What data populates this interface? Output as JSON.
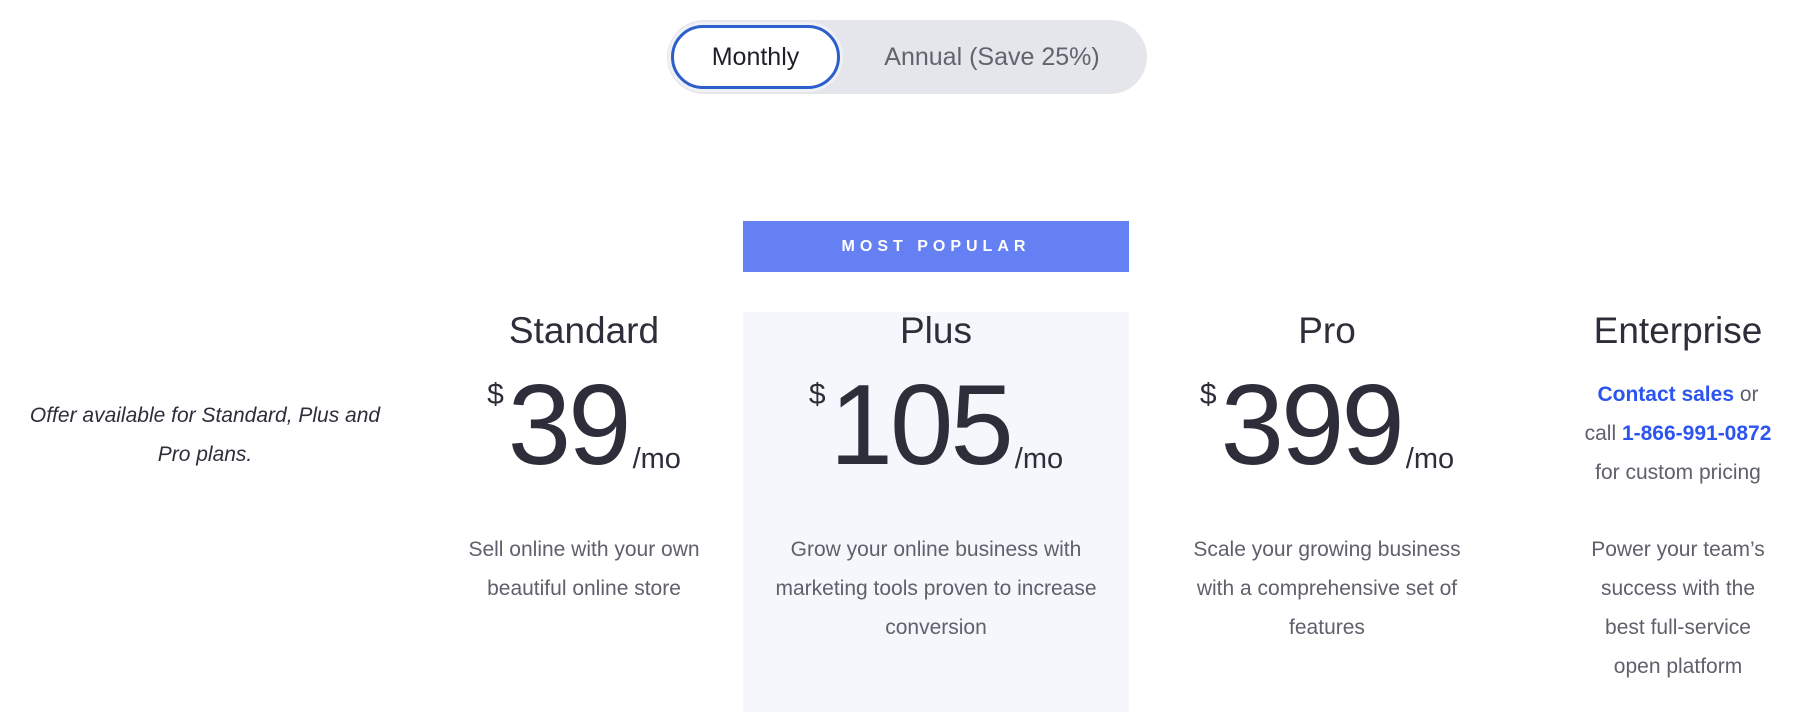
{
  "billing_toggle": {
    "monthly": "Monthly",
    "annual": "Annual (Save 25%)",
    "selected": "Monthly"
  },
  "offer_note": "Offer available for Standard, Plus and Pro plans.",
  "badge": "MOST POPULAR",
  "colors": {
    "accent": "#2d5fcc",
    "banner": "#6580f2",
    "link": "#2c54f0",
    "highlight_bg": "#f6f7fc"
  },
  "plans": [
    {
      "name": "Standard",
      "currency": "$",
      "price": "39",
      "period": "/mo",
      "description": "Sell online with your own beautiful online store"
    },
    {
      "name": "Plus",
      "currency": "$",
      "price": "105",
      "period": "/mo",
      "description": "Grow your online business with marketing tools proven to increase conversion"
    },
    {
      "name": "Pro",
      "currency": "$",
      "price": "399",
      "period": "/mo",
      "description": "Scale your growing business with a comprehensive set of features"
    }
  ],
  "enterprise": {
    "name": "Enterprise",
    "contact_link": "Contact sales",
    "or_call": " or call ",
    "phone": "1-866-991-0872",
    "suffix": " for custom pricing",
    "description": "Power your team’s success with the best full-service open platform"
  }
}
